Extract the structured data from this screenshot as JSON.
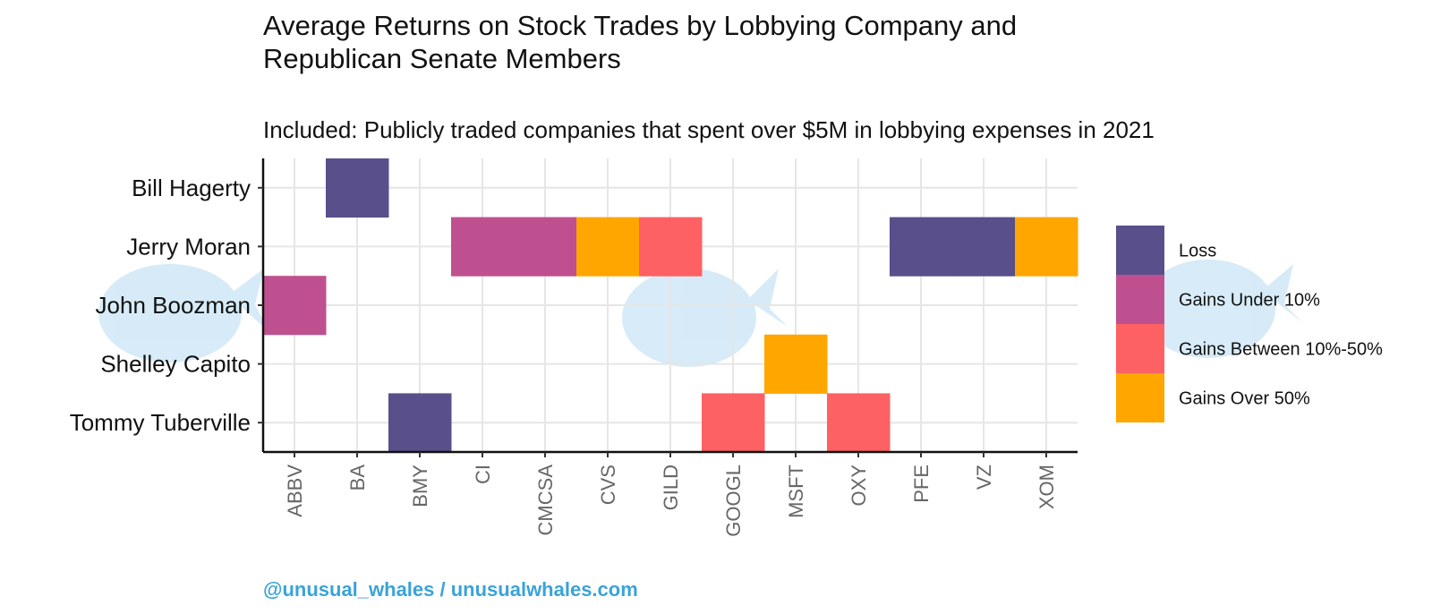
{
  "chart_data": {
    "type": "heatmap",
    "title": "Average Returns on Stock Trades by Lobbying Company and Republican Senate Members",
    "subtitle": "Included: Publicly traded companies that spent over $5M in lobbying expenses in 2021",
    "caption": "@unusual_whales / unusualwhales.com",
    "x_categories": [
      "ABBV",
      "BA",
      "BMY",
      "CI",
      "CMCSA",
      "CVS",
      "GILD",
      "GOOGL",
      "MSFT",
      "OXY",
      "PFE",
      "VZ",
      "XOM"
    ],
    "y_categories": [
      "Bill Hagerty",
      "Jerry Moran",
      "John Boozman",
      "Shelley Capito",
      "Tommy Tuberville"
    ],
    "legend": [
      {
        "label": "Loss",
        "color": "#594f8a"
      },
      {
        "label": "Gains Under 10%",
        "color": "#bf508f"
      },
      {
        "label": "Gains Between 10%-50%",
        "color": "#fd6163"
      },
      {
        "label": "Gains Over 50%",
        "color": "#ffa600"
      }
    ],
    "cells": [
      {
        "senator": "Bill Hagerty",
        "company": "BA",
        "category": "Loss"
      },
      {
        "senator": "Jerry Moran",
        "company": "CI",
        "category": "Gains Under 10%"
      },
      {
        "senator": "Jerry Moran",
        "company": "CMCSA",
        "category": "Gains Under 10%"
      },
      {
        "senator": "Jerry Moran",
        "company": "CVS",
        "category": "Gains Over 50%"
      },
      {
        "senator": "Jerry Moran",
        "company": "GILD",
        "category": "Gains Between 10%-50%"
      },
      {
        "senator": "Jerry Moran",
        "company": "PFE",
        "category": "Loss"
      },
      {
        "senator": "Jerry Moran",
        "company": "VZ",
        "category": "Loss"
      },
      {
        "senator": "Jerry Moran",
        "company": "XOM",
        "category": "Gains Over 50%"
      },
      {
        "senator": "John Boozman",
        "company": "ABBV",
        "category": "Gains Under 10%"
      },
      {
        "senator": "Shelley Capito",
        "company": "MSFT",
        "category": "Gains Over 50%"
      },
      {
        "senator": "Tommy Tuberville",
        "company": "BMY",
        "category": "Loss"
      },
      {
        "senator": "Tommy Tuberville",
        "company": "GOOGL",
        "category": "Gains Between 10%-50%"
      },
      {
        "senator": "Tommy Tuberville",
        "company": "OXY",
        "category": "Gains Between 10%-50%"
      }
    ],
    "legend_position": "right",
    "grid": true,
    "x_label_rotation": "vertical"
  }
}
